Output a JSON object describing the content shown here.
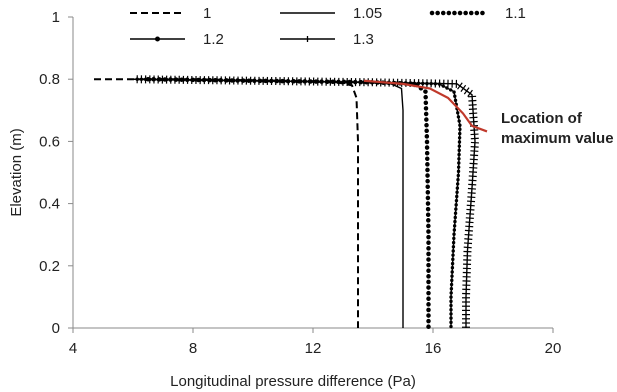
{
  "chart_data": {
    "type": "line",
    "title": "",
    "xlabel": "Longitudinal  pressure difference (Pa)",
    "ylabel": "Elevation (m)",
    "xlim": [
      4,
      20
    ],
    "ylim": [
      0,
      1
    ],
    "xticks": [
      "4",
      "8",
      "12",
      "16",
      "20"
    ],
    "yticks": [
      "0",
      "0.2",
      "0.4",
      "0.6",
      "0.8",
      "1"
    ],
    "grid": false,
    "legend_position": "top",
    "series": [
      {
        "name": "1",
        "style": "dashed",
        "color": "#000000",
        "x": [
          4.7,
          8.0,
          11.0,
          12.8,
          13.3,
          13.45,
          13.5,
          13.5,
          13.5
        ],
        "y": [
          0.8,
          0.8,
          0.795,
          0.79,
          0.78,
          0.74,
          0.6,
          0.3,
          0.0
        ]
      },
      {
        "name": "1.05",
        "style": "solid",
        "color": "#000000",
        "x": [
          6.0,
          10.0,
          13.5,
          14.6,
          14.95,
          15.0,
          15.0,
          15.0
        ],
        "y": [
          0.8,
          0.795,
          0.79,
          0.785,
          0.77,
          0.7,
          0.4,
          0.0
        ]
      },
      {
        "name": "1.1",
        "style": "dotted-heavy",
        "color": "#000000",
        "x": [
          6.5,
          10.0,
          14.0,
          15.4,
          15.75,
          15.8,
          15.85,
          15.85
        ],
        "y": [
          0.8,
          0.795,
          0.79,
          0.785,
          0.76,
          0.6,
          0.3,
          0.0
        ]
      },
      {
        "name": "1.2",
        "style": "solid-with-dot-markers",
        "color": "#000000",
        "x": [
          6.0,
          10.0,
          14.0,
          16.2,
          16.7,
          16.9,
          16.85,
          16.7,
          16.6,
          16.6
        ],
        "y": [
          0.8,
          0.795,
          0.79,
          0.785,
          0.76,
          0.65,
          0.5,
          0.3,
          0.1,
          0.0
        ]
      },
      {
        "name": "1.3",
        "style": "solid-with-bar-markers",
        "color": "#000000",
        "x": [
          6.0,
          10.0,
          14.0,
          16.8,
          17.3,
          17.4,
          17.3,
          17.15,
          17.1,
          17.1
        ],
        "y": [
          0.8,
          0.795,
          0.79,
          0.785,
          0.75,
          0.6,
          0.45,
          0.25,
          0.1,
          0.0
        ]
      }
    ],
    "annotations": [
      {
        "text_lines": [
          "Location of",
          "maximum value"
        ],
        "x": 18.1,
        "y": 0.62,
        "curve": {
          "color": "#c0392b",
          "x": [
            13.7,
            15.0,
            15.9,
            16.5,
            17.0,
            17.3,
            17.8
          ],
          "y": [
            0.795,
            0.785,
            0.77,
            0.74,
            0.69,
            0.65,
            0.632
          ]
        }
      }
    ]
  }
}
